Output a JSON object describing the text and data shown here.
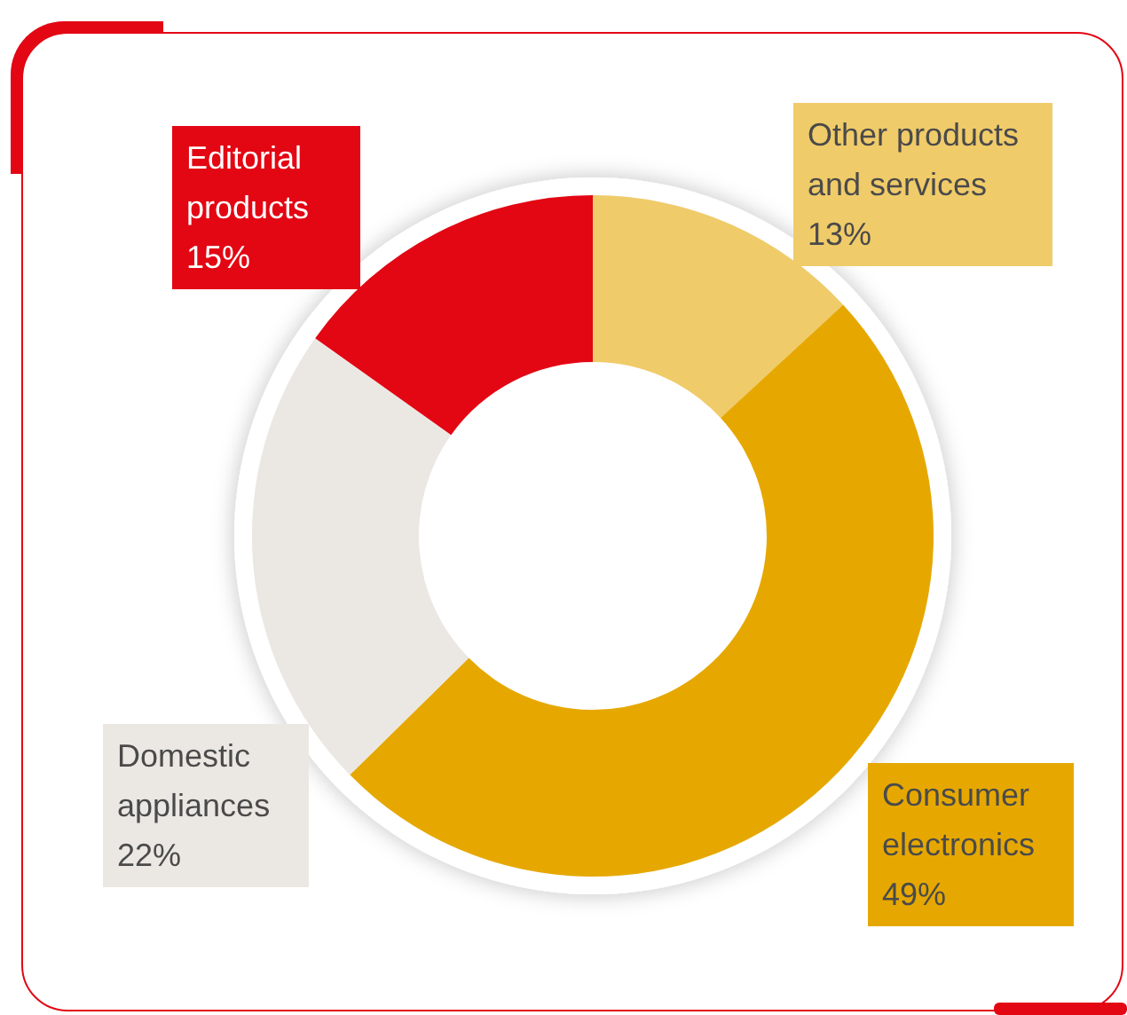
{
  "chart_data": {
    "type": "donut",
    "categories": [
      "Other products and services",
      "Consumer electronics",
      "Domestic appliances",
      "Editorial products"
    ],
    "values": [
      13,
      49,
      22,
      15
    ],
    "colors": [
      "#f0cb69",
      "#e6a800",
      "#ebe8e3",
      "#e30613"
    ],
    "value_labels": [
      "13%",
      "49%",
      "22%",
      "15%"
    ],
    "legend": false
  }
}
